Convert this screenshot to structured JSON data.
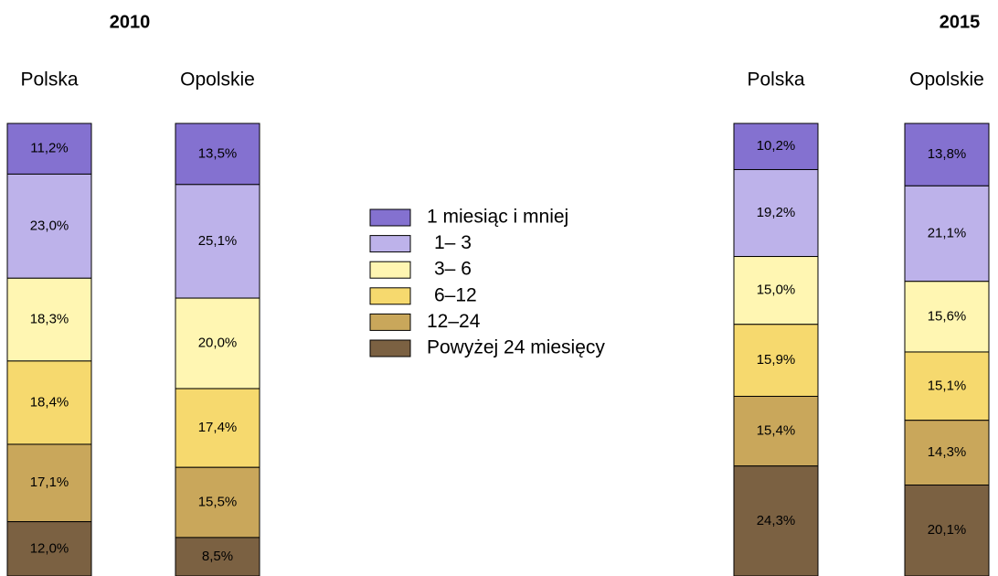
{
  "chart_data": {
    "type": "bar",
    "stacked": true,
    "ylim": [
      0,
      100
    ],
    "groups": [
      {
        "title": "2010",
        "categories": [
          "Polska",
          "Opolskie"
        ]
      },
      {
        "title": "2015",
        "categories": [
          "Polska",
          "Opolskie"
        ]
      }
    ],
    "series": [
      {
        "name": "1 miesiąc i mniej",
        "color": "#8471d0",
        "values": [
          11.2,
          13.5,
          10.2,
          13.8
        ],
        "value_labels": [
          "11,2%",
          "13,5%",
          "10,2%",
          "13,8%"
        ]
      },
      {
        "name": "1– 3",
        "color": "#bdb2ea",
        "values": [
          23.0,
          25.1,
          19.2,
          21.1
        ],
        "value_labels": [
          "23,0%",
          "25,1%",
          "19,2%",
          "21,1%"
        ]
      },
      {
        "name": "3– 6",
        "color": "#fff6b2",
        "values": [
          18.3,
          20.0,
          15.0,
          15.6
        ],
        "value_labels": [
          "18,3%",
          "20,0%",
          "15,0%",
          "15,6%"
        ]
      },
      {
        "name": "6–12",
        "color": "#f6d96e",
        "values": [
          18.4,
          17.4,
          15.9,
          15.1
        ],
        "value_labels": [
          "18,4%",
          "17,4%",
          "15,9%",
          "15,1%"
        ]
      },
      {
        "name": "12–24",
        "color": "#c9a75b",
        "values": [
          17.1,
          15.5,
          15.4,
          14.3
        ],
        "value_labels": [
          "17,1%",
          "15,5%",
          "15,4%",
          "14,3%"
        ]
      },
      {
        "name": "Powyżej 24 miesięcy",
        "color": "#7b6142",
        "values": [
          12.0,
          8.5,
          24.3,
          20.1
        ],
        "value_labels": [
          "12,0%",
          "8,5%",
          "24,3%",
          "20,1%"
        ]
      }
    ]
  }
}
